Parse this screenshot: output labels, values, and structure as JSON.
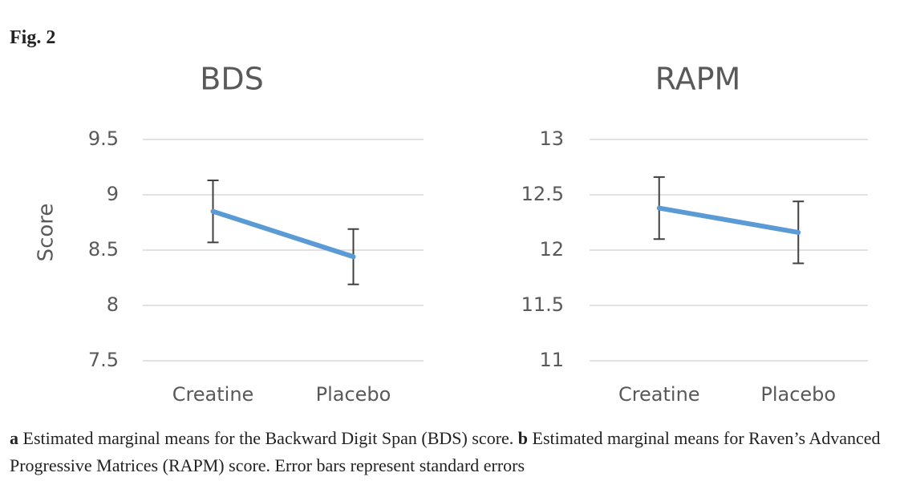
{
  "header": {
    "title": "Fig. 2"
  },
  "chart_data": [
    {
      "type": "line",
      "title": "BDS",
      "ylabel": "Score",
      "categories": [
        "Creatine",
        "Placebo"
      ],
      "values": [
        8.85,
        8.44
      ],
      "errors": [
        0.28,
        0.25
      ],
      "color": "#5b9bd5",
      "ylim": [
        7.5,
        9.5
      ],
      "yticks": [
        7.5,
        8,
        8.5,
        9,
        9.5
      ],
      "grid": true
    },
    {
      "type": "line",
      "title": "RAPM",
      "categories": [
        "Creatine",
        "Placebo"
      ],
      "values": [
        12.38,
        12.16
      ],
      "errors": [
        0.28,
        0.28
      ],
      "color": "#5b9bd5",
      "ylim": [
        11,
        13
      ],
      "yticks": [
        11,
        11.5,
        12,
        12.5,
        13
      ],
      "grid": true
    }
  ],
  "caption": {
    "items": [
      {
        "label": "a",
        "text": "Estimated marginal means for the Backward Digit Span (BDS) score."
      },
      {
        "label": "b",
        "text": "Estimated marginal means for Raven’s Advanced Progressive Matrices (RAPM) score. Error bars represent standard errors"
      }
    ]
  }
}
